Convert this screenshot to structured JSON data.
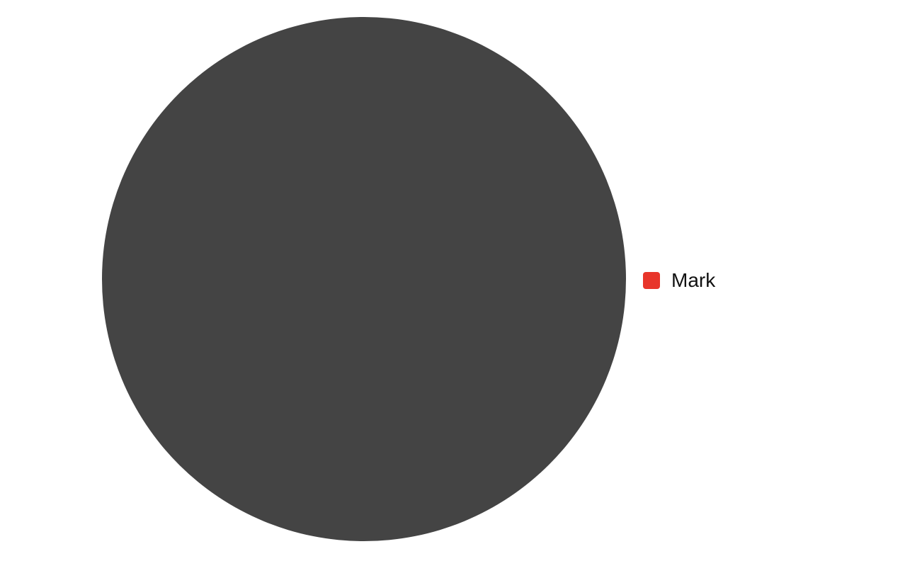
{
  "chart_data": {
    "type": "pie",
    "categories": [
      "Mark"
    ],
    "values": [
      1
    ],
    "slice_colors": [
      "#444444"
    ],
    "legend": {
      "placement": "right",
      "entries": [
        {
          "label": "Mark",
          "color": "#e8352a"
        }
      ]
    }
  }
}
